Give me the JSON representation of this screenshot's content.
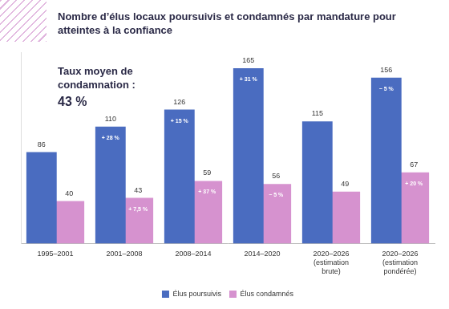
{
  "chart_data": {
    "type": "bar",
    "title": "Nombre d’élus locaux poursuivis et condamnés par mandature pour atteintes à la confiance",
    "annotations": [
      "Taux moyen de condamnation :",
      "43 %"
    ],
    "categories": [
      "1995–2001",
      "2001–2008",
      "2008–2014",
      "2014–2020",
      "2020–2026 (estimation brute)",
      "2020–2026 (estimation pondérée)"
    ],
    "series": [
      {
        "name": "Élus poursuivis",
        "color": "#4a6cc0",
        "values": [
          86,
          110,
          126,
          165,
          115,
          156
        ],
        "change_labels": [
          null,
          "+ 28 %",
          "+ 15 %",
          "+ 31 %",
          null,
          "− 5 %"
        ]
      },
      {
        "name": "Élus condamnés",
        "color": "#d692cf",
        "values": [
          40,
          43,
          59,
          56,
          49,
          67
        ],
        "change_labels": [
          null,
          "+ 7,5 %",
          "+ 37 %",
          "− 5 %",
          null,
          "+ 20 %"
        ]
      }
    ],
    "ylim": [
      0,
      180
    ],
    "grid": false,
    "legend": "bottom",
    "data_labels": true,
    "tick_labels": "x"
  }
}
